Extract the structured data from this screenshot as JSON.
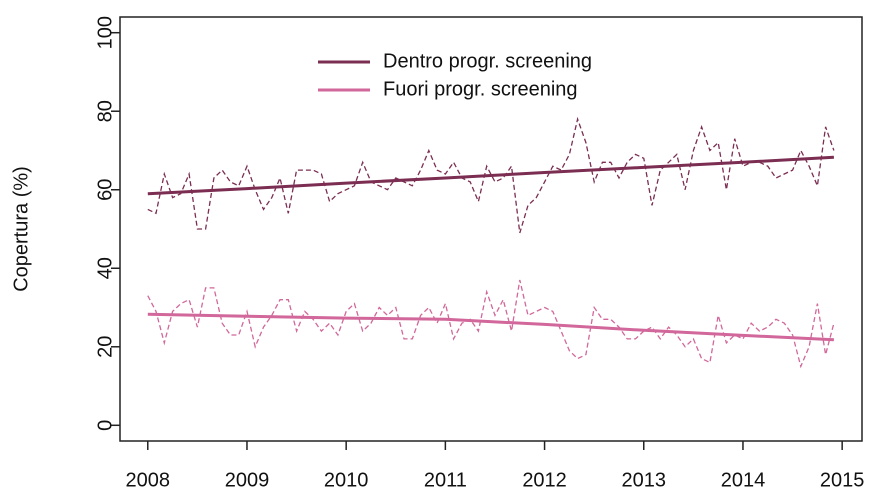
{
  "chart_data": {
    "type": "line",
    "y_label": "Copertura (%)",
    "xlim": [
      2007.72,
      2015.2
    ],
    "ylim": [
      -4,
      104
    ],
    "xticks": [
      2008,
      2009,
      2010,
      2011,
      2012,
      2013,
      2014,
      2015
    ],
    "yticks": [
      0,
      20,
      40,
      60,
      80,
      100
    ],
    "x": [
      2008,
      2008.083,
      2008.167,
      2008.25,
      2008.333,
      2008.417,
      2008.5,
      2008.583,
      2008.667,
      2008.75,
      2008.833,
      2008.917,
      2009,
      2009.083,
      2009.167,
      2009.25,
      2009.333,
      2009.417,
      2009.5,
      2009.583,
      2009.667,
      2009.75,
      2009.833,
      2009.917,
      2010,
      2010.083,
      2010.167,
      2010.25,
      2010.333,
      2010.417,
      2010.5,
      2010.583,
      2010.667,
      2010.75,
      2010.833,
      2010.917,
      2011,
      2011.083,
      2011.167,
      2011.25,
      2011.333,
      2011.417,
      2011.5,
      2011.583,
      2011.667,
      2011.75,
      2011.833,
      2011.917,
      2012,
      2012.083,
      2012.167,
      2012.25,
      2012.333,
      2012.417,
      2012.5,
      2012.583,
      2012.667,
      2012.75,
      2012.833,
      2012.917,
      2013,
      2013.083,
      2013.167,
      2013.25,
      2013.333,
      2013.417,
      2013.5,
      2013.583,
      2013.667,
      2013.75,
      2013.833,
      2013.917,
      2014,
      2014.083,
      2014.167,
      2014.25,
      2014.333,
      2014.417,
      2014.5,
      2014.583,
      2014.667,
      2014.75,
      2014.833,
      2014.917
    ],
    "trend_x": [
      2008,
      2009,
      2010,
      2011,
      2012,
      2013,
      2014,
      2014.917
    ],
    "legend": "top-left",
    "series": [
      {
        "name": "Dentro progr. screening",
        "color": "#7b2d52",
        "values": [
          55,
          54,
          64,
          58,
          59,
          64,
          50,
          50,
          63,
          65,
          62,
          61,
          66,
          60,
          55,
          58,
          63,
          54,
          65,
          65,
          65,
          64,
          57,
          59,
          60,
          61,
          67,
          62,
          61,
          60,
          63,
          62,
          61,
          65,
          70,
          65,
          64,
          67,
          63,
          62,
          57,
          66,
          62,
          63,
          66,
          49,
          56,
          58,
          62,
          66,
          65,
          69,
          78,
          72,
          62,
          67,
          67,
          63,
          67,
          69,
          68,
          56,
          65,
          67,
          69,
          60,
          70,
          76,
          70,
          72,
          60,
          73,
          66,
          67,
          67,
          66,
          63,
          64,
          65,
          70,
          66,
          61,
          76,
          70
        ],
        "trend": [
          59,
          60.3,
          61.7,
          63,
          64.4,
          65.7,
          67,
          68.3
        ]
      },
      {
        "name": "Fuori progr. screening",
        "color": "#d1679a",
        "values": [
          33,
          29,
          21,
          29,
          31,
          32,
          25,
          35,
          35,
          26,
          23,
          23,
          29,
          20,
          25,
          28,
          32,
          32,
          24,
          29,
          27,
          24,
          26,
          23,
          29,
          31,
          24,
          26,
          30,
          28,
          30,
          22,
          22,
          28,
          30,
          26,
          31,
          22,
          26,
          27,
          24,
          34,
          28,
          32,
          24,
          37,
          28,
          29,
          30,
          29,
          24,
          19,
          17,
          18,
          30,
          27,
          27,
          25,
          22,
          22,
          24,
          25,
          22,
          25,
          23,
          20,
          22,
          17,
          16,
          28,
          21,
          23,
          22,
          26,
          24,
          25,
          27,
          26,
          23,
          15,
          20,
          31,
          18,
          26
        ],
        "trend": [
          28.3,
          27.8,
          27.3,
          27,
          25.7,
          24.2,
          22.9,
          21.8
        ]
      }
    ]
  }
}
